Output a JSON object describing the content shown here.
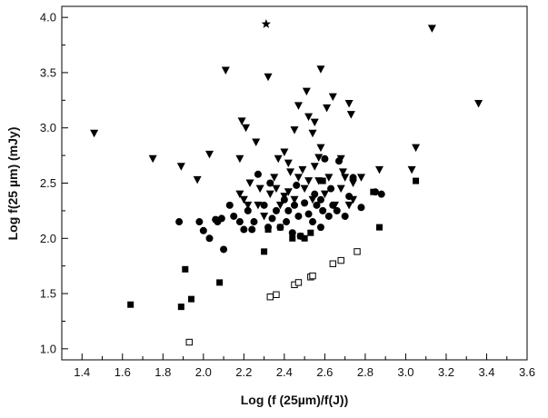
{
  "chart_data": {
    "type": "scatter",
    "title": "",
    "xlabel": "Log (f (25µm)/f(J))",
    "ylabel": "Log f(25 µm) (mJy)",
    "xlim": [
      1.3,
      3.6
    ],
    "ylim": [
      0.9,
      4.1
    ],
    "x_ticks": [
      "1.4",
      "1.6",
      "1.8",
      "2.0",
      "2.2",
      "2.4",
      "2.6",
      "2.8",
      "3.0",
      "3.2",
      "3.4",
      "3.6"
    ],
    "y_ticks": [
      "1.0",
      "1.5",
      "2.0",
      "2.5",
      "3.0",
      "3.5",
      "4.0"
    ],
    "grid": false,
    "legend": "none",
    "series": [
      {
        "marker": "triangle-down",
        "color": "#000000",
        "points": [
          [
            1.46,
            2.95
          ],
          [
            1.75,
            2.72
          ],
          [
            1.89,
            2.65
          ],
          [
            1.97,
            2.53
          ],
          [
            2.03,
            2.76
          ],
          [
            2.11,
            3.52
          ],
          [
            2.18,
            2.72
          ],
          [
            2.19,
            3.06
          ],
          [
            2.21,
            3.0
          ],
          [
            2.26,
            2.87
          ],
          [
            2.32,
            3.46
          ],
          [
            2.37,
            2.72
          ],
          [
            2.4,
            2.78
          ],
          [
            2.42,
            2.68
          ],
          [
            2.45,
            2.98
          ],
          [
            2.47,
            3.2
          ],
          [
            2.51,
            3.33
          ],
          [
            2.52,
            3.1
          ],
          [
            2.54,
            2.95
          ],
          [
            2.55,
            3.05
          ],
          [
            2.57,
            2.73
          ],
          [
            2.58,
            3.53
          ],
          [
            2.58,
            2.82
          ],
          [
            2.61,
            3.18
          ],
          [
            2.64,
            3.28
          ],
          [
            2.68,
            2.72
          ],
          [
            2.69,
            2.6
          ],
          [
            2.72,
            3.22
          ],
          [
            2.73,
            3.12
          ],
          [
            2.74,
            2.5
          ],
          [
            2.78,
            2.55
          ],
          [
            2.87,
            2.62
          ],
          [
            3.03,
            2.62
          ],
          [
            3.05,
            2.82
          ],
          [
            3.13,
            3.9
          ],
          [
            3.36,
            3.22
          ],
          [
            2.18,
            2.4
          ],
          [
            2.2,
            2.35
          ],
          [
            2.22,
            2.3
          ],
          [
            2.27,
            2.3
          ],
          [
            2.3,
            2.2
          ],
          [
            2.33,
            2.4
          ],
          [
            2.36,
            2.45
          ],
          [
            2.38,
            2.3
          ],
          [
            2.4,
            2.38
          ],
          [
            2.42,
            2.42
          ],
          [
            2.43,
            2.6
          ],
          [
            2.45,
            2.35
          ],
          [
            2.47,
            2.55
          ],
          [
            2.49,
            2.62
          ],
          [
            2.5,
            2.45
          ],
          [
            2.52,
            2.52
          ],
          [
            2.54,
            2.35
          ],
          [
            2.55,
            2.65
          ],
          [
            2.57,
            2.52
          ],
          [
            2.6,
            2.4
          ],
          [
            2.62,
            2.55
          ],
          [
            2.65,
            2.3
          ],
          [
            2.68,
            2.45
          ],
          [
            2.7,
            2.55
          ],
          [
            2.72,
            2.3
          ],
          [
            2.74,
            2.35
          ],
          [
            2.23,
            2.5
          ],
          [
            2.28,
            2.45
          ],
          [
            2.35,
            2.55
          ]
        ]
      },
      {
        "marker": "circle",
        "color": "#000000",
        "points": [
          [
            1.88,
            2.15
          ],
          [
            1.98,
            2.15
          ],
          [
            2.0,
            2.07
          ],
          [
            2.03,
            2.0
          ],
          [
            2.06,
            2.17
          ],
          [
            2.07,
            2.15
          ],
          [
            2.09,
            2.18
          ],
          [
            2.1,
            1.9
          ],
          [
            2.13,
            2.3
          ],
          [
            2.15,
            2.2
          ],
          [
            2.18,
            2.15
          ],
          [
            2.2,
            2.08
          ],
          [
            2.22,
            2.25
          ],
          [
            2.24,
            2.08
          ],
          [
            2.25,
            2.15
          ],
          [
            2.27,
            2.58
          ],
          [
            2.3,
            2.3
          ],
          [
            2.32,
            2.1
          ],
          [
            2.34,
            2.18
          ],
          [
            2.36,
            2.25
          ],
          [
            2.38,
            2.1
          ],
          [
            2.4,
            2.35
          ],
          [
            2.41,
            2.15
          ],
          [
            2.42,
            2.25
          ],
          [
            2.44,
            2.05
          ],
          [
            2.45,
            2.3
          ],
          [
            2.47,
            2.2
          ],
          [
            2.48,
            2.02
          ],
          [
            2.5,
            2.32
          ],
          [
            2.52,
            2.22
          ],
          [
            2.54,
            2.15
          ],
          [
            2.56,
            2.3
          ],
          [
            2.58,
            2.35
          ],
          [
            2.59,
            2.25
          ],
          [
            2.6,
            2.72
          ],
          [
            2.62,
            2.2
          ],
          [
            2.64,
            2.3
          ],
          [
            2.66,
            2.25
          ],
          [
            2.67,
            2.7
          ],
          [
            2.7,
            2.2
          ],
          [
            2.72,
            2.38
          ],
          [
            2.74,
            2.55
          ],
          [
            2.78,
            2.28
          ],
          [
            2.85,
            2.42
          ],
          [
            2.88,
            2.4
          ],
          [
            2.33,
            2.5
          ],
          [
            2.46,
            2.48
          ],
          [
            2.55,
            2.4
          ],
          [
            2.63,
            2.45
          ],
          [
            2.58,
            2.1
          ]
        ]
      },
      {
        "marker": "square",
        "color": "#000000",
        "points": [
          [
            1.64,
            1.4
          ],
          [
            1.89,
            1.38
          ],
          [
            1.91,
            1.72
          ],
          [
            1.94,
            1.45
          ],
          [
            2.08,
            1.6
          ],
          [
            2.3,
            1.88
          ],
          [
            2.32,
            2.08
          ],
          [
            2.38,
            2.1
          ],
          [
            2.44,
            2.0
          ],
          [
            2.48,
            2.02
          ],
          [
            2.5,
            2.0
          ],
          [
            2.53,
            2.05
          ],
          [
            2.59,
            2.52
          ],
          [
            2.84,
            2.42
          ],
          [
            2.87,
            2.1
          ],
          [
            3.05,
            2.52
          ]
        ]
      },
      {
        "marker": "square-open",
        "color": "#000000",
        "points": [
          [
            1.93,
            1.06
          ],
          [
            2.33,
            1.47
          ],
          [
            2.36,
            1.49
          ],
          [
            2.45,
            1.58
          ],
          [
            2.47,
            1.6
          ],
          [
            2.53,
            1.65
          ],
          [
            2.54,
            1.66
          ],
          [
            2.64,
            1.77
          ],
          [
            2.68,
            1.8
          ],
          [
            2.76,
            1.88
          ]
        ]
      },
      {
        "marker": "star",
        "color": "#000000",
        "points": [
          [
            2.31,
            3.94
          ]
        ]
      }
    ]
  }
}
